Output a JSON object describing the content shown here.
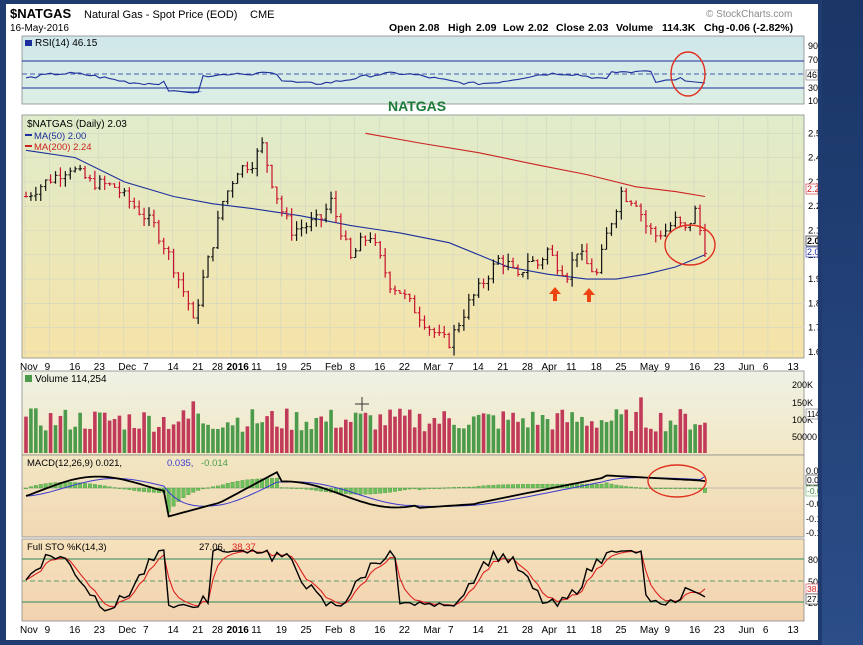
{
  "header": {
    "symbol": "$NATGAS",
    "description": "Natural Gas - Spot Price (EOD)",
    "exchange": "CME",
    "date": "16-May-2016",
    "watermark": "© StockCharts.com",
    "open_label": "Open",
    "open": "2.08",
    "high_label": "High",
    "high": "2.09",
    "low_label": "Low",
    "low": "2.02",
    "close_label": "Close",
    "close": "2.03",
    "volume_label": "Volume",
    "volume": "114.3K",
    "chg_label": "Chg",
    "chg": "-0.06 (-2.82%)"
  },
  "annotation": "NATGAS",
  "x_axis_labels": [
    "Nov",
    "9",
    "16",
    "23",
    "Dec",
    "7",
    "14",
    "21",
    "28",
    "2016",
    "11",
    "19",
    "25",
    "Feb",
    "8",
    "16",
    "22",
    "Mar",
    "7",
    "14",
    "21",
    "28",
    "Apr",
    "11",
    "18",
    "25",
    "May",
    "9",
    "16",
    "23",
    "Jun",
    "6",
    "13"
  ],
  "rsi": {
    "legend": "RSI(14) 46.15",
    "value_badge": "46.15",
    "ticks": [
      "90",
      "70",
      "50",
      "30",
      "10"
    ]
  },
  "price": {
    "legend_main": "$NATGAS (Daily) 2.03",
    "legend_ma50": "MA(50) 2.00",
    "legend_ma200": "MA(200) 2.24",
    "ticks": [
      "2.5",
      "2.4",
      "2.3",
      "2.2",
      "2.1",
      "2.0",
      "1.9",
      "1.8",
      "1.7",
      "1.6"
    ],
    "badge_close": "2.03",
    "badge_ma50": "2.00",
    "badge_ma200": "2.24"
  },
  "volume": {
    "legend": "Volume 114,254",
    "ticks": [
      "200K",
      "150K",
      "100K",
      "50000"
    ],
    "badge": "114254"
  },
  "macd": {
    "legend_main": "MACD(12,26,9) 0.021,",
    "legend_signal": "0.035,",
    "legend_hist": "-0.014",
    "ticks": [
      "0.05",
      "0.00",
      "-0.05",
      "-0.10",
      "-0.15"
    ],
    "badge_macd": "0.021",
    "badge_hist": "-0.014"
  },
  "sto": {
    "legend_main": "Full STO %K(14,3)",
    "legend_k": "27.06,",
    "legend_d": "38.37",
    "ticks": [
      "80",
      "50",
      "20"
    ],
    "badge_d": "38.37",
    "badge_k": "27.06"
  },
  "colors": {
    "up": "#111111",
    "down": "#c8102e",
    "ma50": "#1c2f9c",
    "ma200": "#cc2222",
    "vol_up": "#4c9a4c",
    "vol_down": "#c23a5a",
    "annotation": "#1d7b3a",
    "circle": "#e03020",
    "arrow": "#ee4411",
    "stoK": "#000000",
    "stoD": "#dd2222"
  },
  "chart_data": {
    "type": "line",
    "title": "$NATGAS Natural Gas - Spot Price (EOD) CME",
    "series": [
      {
        "name": "$NATGAS (Daily)",
        "x": [
          "Nov 2",
          "Nov 16",
          "Dec 1",
          "Dec 18",
          "Dec 22",
          "Jan 4",
          "Jan 11",
          "Jan 19",
          "Jan 28",
          "Feb 3",
          "Feb 16",
          "Mar 3",
          "Mar 14",
          "Mar 21",
          "Mar 28",
          "Apr 4",
          "Apr 11",
          "Apr 18",
          "Apr 25",
          "May 4",
          "May 10",
          "May 16"
        ],
        "values": [
          2.28,
          2.35,
          2.2,
          1.68,
          2.05,
          2.35,
          2.48,
          2.12,
          2.2,
          1.95,
          1.88,
          1.62,
          1.9,
          2.0,
          1.95,
          1.98,
          1.92,
          2.05,
          2.28,
          2.1,
          2.16,
          2.03
        ]
      },
      {
        "name": "MA(50)",
        "x": [
          "Nov 2",
          "Dec 1",
          "Dec 22",
          "Jan 11",
          "Feb 3",
          "Mar 3",
          "Mar 21",
          "Apr 11",
          "Apr 25",
          "May 9",
          "May 16"
        ],
        "values": [
          2.43,
          2.3,
          2.21,
          2.18,
          2.12,
          2.06,
          1.97,
          1.92,
          1.9,
          1.95,
          2.0
        ]
      },
      {
        "name": "MA(200)",
        "x": [
          "Feb 3",
          "Mar 3",
          "Apr 4",
          "May 4",
          "May 16"
        ],
        "values": [
          2.5,
          2.43,
          2.35,
          2.27,
          2.24
        ]
      }
    ],
    "ylim": [
      1.55,
      2.55
    ],
    "indicators": {
      "RSI(14)": 46.15,
      "MA(50)": 2.0,
      "MA(200)": 2.24,
      "Volume": 114254,
      "MACD": 0.021,
      "Signal": 0.035,
      "Histogram": -0.014,
      "%K": 27.06,
      "%D": 38.37
    },
    "grid": true
  }
}
